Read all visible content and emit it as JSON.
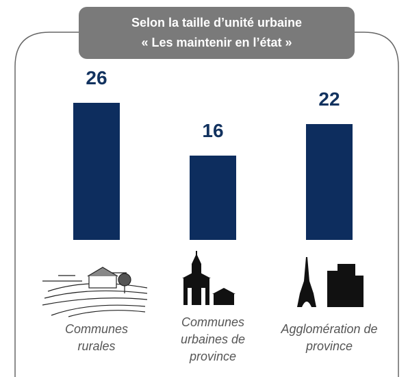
{
  "chart_data": {
    "type": "bar",
    "title": "Selon la taille d’unité urbaine",
    "subtitle": "« Les maintenir en l’état »",
    "categories": [
      "Communes rurales",
      "Communes urbaines de province",
      "Agglomération de province"
    ],
    "values": [
      26,
      16,
      22
    ],
    "color": "#0d2d5e"
  }
}
